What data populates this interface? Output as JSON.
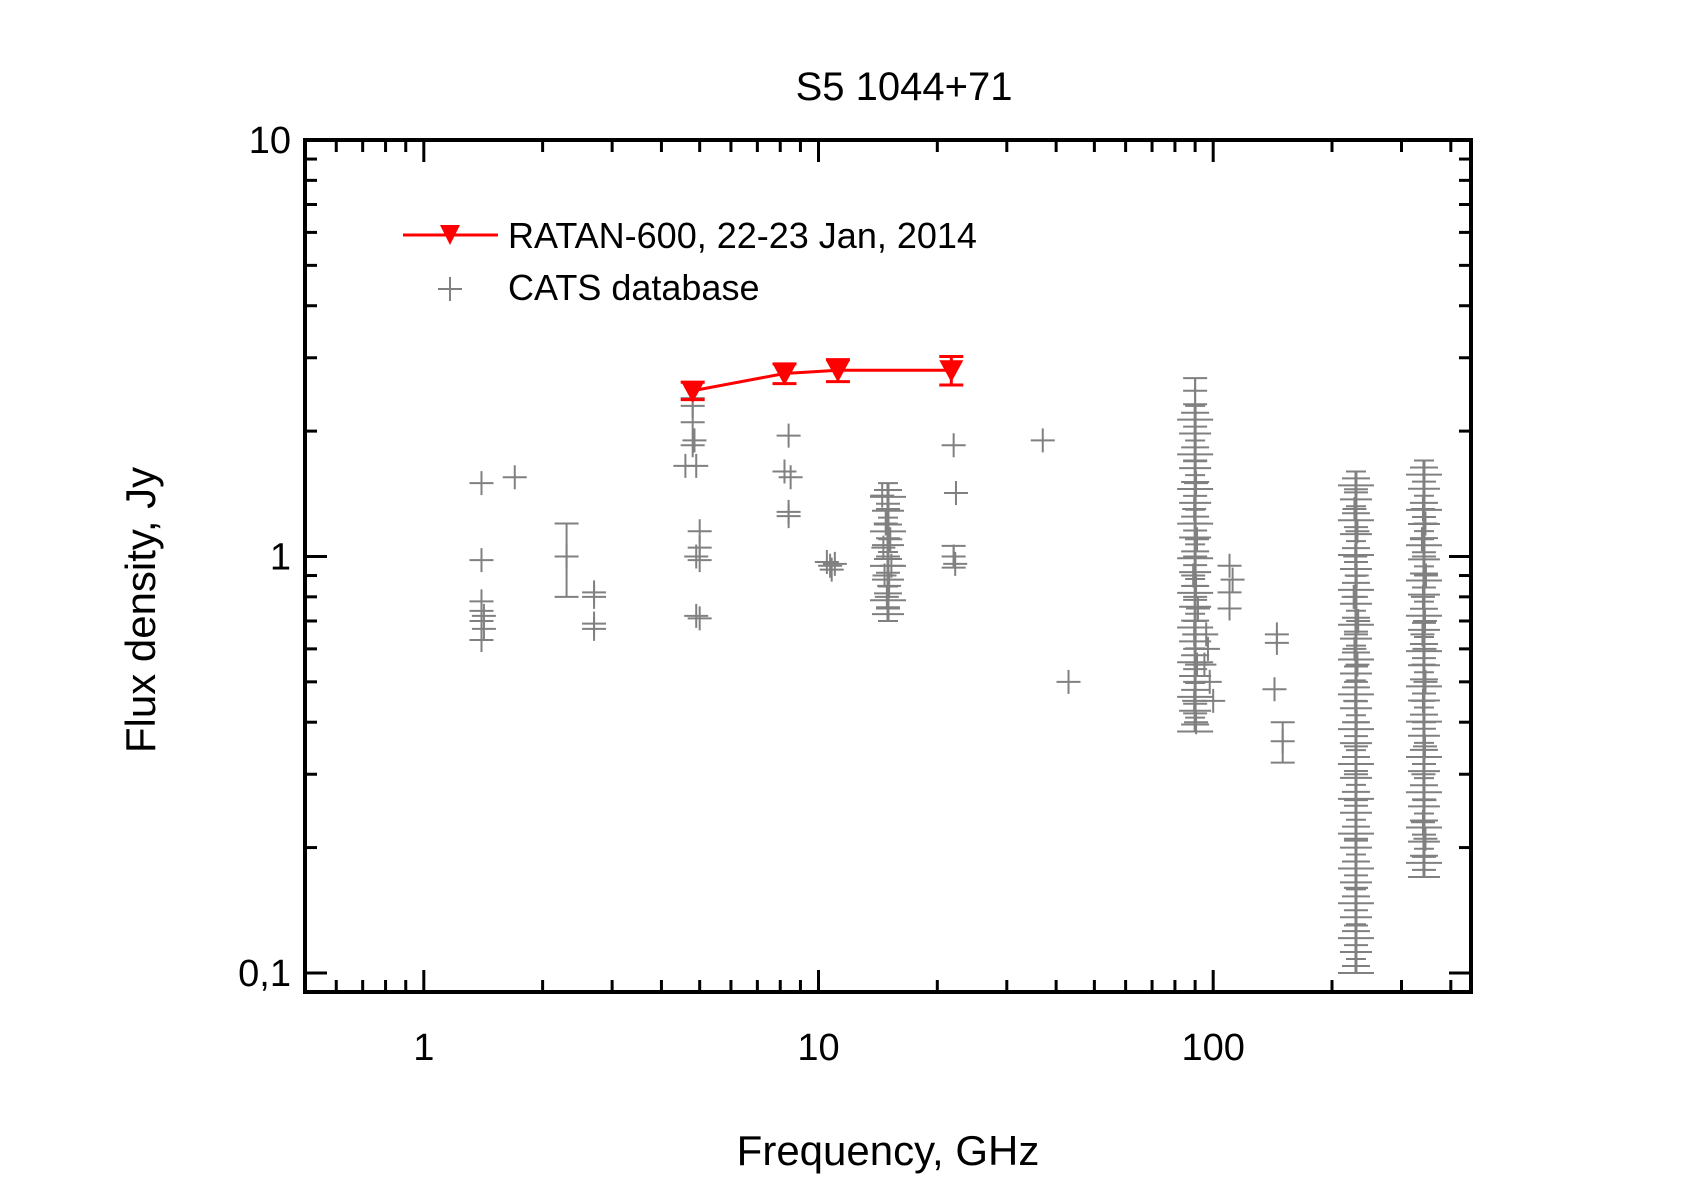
{
  "chart_data": {
    "type": "scatter",
    "title": "S5 1044+71",
    "xlabel": "Frequency, GHz",
    "ylabel": "Flux density, Jy",
    "x_scale": "log",
    "y_scale": "log",
    "xlim": [
      0.5,
      450
    ],
    "ylim": [
      0.09,
      10
    ],
    "x_tick_labels": [
      {
        "value": 1,
        "label": "1"
      },
      {
        "value": 10,
        "label": "10"
      },
      {
        "value": 100,
        "label": "100"
      }
    ],
    "y_tick_labels": [
      {
        "value": 0.1,
        "label": "0,1"
      },
      {
        "value": 1,
        "label": "1"
      },
      {
        "value": 10,
        "label": "10"
      }
    ],
    "grid": false,
    "legend_position": "top-left",
    "colors": {
      "ratan": "#ff0000",
      "cats": "#808080"
    },
    "series": [
      {
        "name": "RATAN-600, 22-23 Jan, 2014",
        "marker": "triangle-down",
        "line": true,
        "points": [
          {
            "x": 4.8,
            "y": 2.5,
            "err": 0.12
          },
          {
            "x": 8.2,
            "y": 2.75,
            "err": 0.15
          },
          {
            "x": 11.2,
            "y": 2.8,
            "err": 0.17
          },
          {
            "x": 21.7,
            "y": 2.8,
            "err": 0.22
          }
        ]
      },
      {
        "name": "CATS database",
        "marker": "plus",
        "line": false,
        "points": [
          {
            "x": 1.4,
            "y": 1.5
          },
          {
            "x": 1.4,
            "y": 0.98
          },
          {
            "x": 1.4,
            "y": 0.78
          },
          {
            "x": 1.4,
            "y": 0.74
          },
          {
            "x": 1.42,
            "y": 0.72
          },
          {
            "x": 1.4,
            "y": 0.7
          },
          {
            "x": 1.42,
            "y": 0.67
          },
          {
            "x": 1.4,
            "y": 0.63
          },
          {
            "x": 1.7,
            "y": 1.55
          },
          {
            "x": 2.3,
            "y": 1.0,
            "err": 0.2
          },
          {
            "x": 2.7,
            "y": 0.82
          },
          {
            "x": 2.7,
            "y": 0.8
          },
          {
            "x": 2.7,
            "y": 0.69
          },
          {
            "x": 2.7,
            "y": 0.67
          },
          {
            "x": 4.8,
            "y": 2.4
          },
          {
            "x": 4.8,
            "y": 2.3
          },
          {
            "x": 4.8,
            "y": 2.1
          },
          {
            "x": 4.85,
            "y": 1.9
          },
          {
            "x": 4.8,
            "y": 1.85
          },
          {
            "x": 4.6,
            "y": 1.65
          },
          {
            "x": 4.9,
            "y": 1.65
          },
          {
            "x": 5.0,
            "y": 1.15
          },
          {
            "x": 5.0,
            "y": 1.05
          },
          {
            "x": 4.9,
            "y": 1.0
          },
          {
            "x": 5.0,
            "y": 0.98
          },
          {
            "x": 4.9,
            "y": 0.72
          },
          {
            "x": 5.0,
            "y": 0.71
          },
          {
            "x": 8.4,
            "y": 1.95
          },
          {
            "x": 8.2,
            "y": 1.6
          },
          {
            "x": 8.5,
            "y": 1.55
          },
          {
            "x": 8.4,
            "y": 1.28
          },
          {
            "x": 8.4,
            "y": 1.25
          },
          {
            "x": 10.5,
            "y": 0.97
          },
          {
            "x": 10.7,
            "y": 0.95
          },
          {
            "x": 11.0,
            "y": 0.96
          },
          {
            "x": 10.8,
            "y": 0.93
          },
          {
            "x": 14.5,
            "y": 1.4
          },
          {
            "x": 15.0,
            "y": 1.3
          },
          {
            "x": 14.8,
            "y": 1.2
          },
          {
            "x": 15.2,
            "y": 1.1
          },
          {
            "x": 14.6,
            "y": 1.05
          },
          {
            "x": 15.0,
            "y": 1.0
          },
          {
            "x": 15.3,
            "y": 0.95
          },
          {
            "x": 14.7,
            "y": 0.9
          },
          {
            "x": 15.1,
            "y": 0.85
          },
          {
            "x": 14.9,
            "y": 0.8
          },
          {
            "x": 15.0,
            "y": 0.75
          },
          {
            "x": 22.0,
            "y": 1.85
          },
          {
            "x": 22.3,
            "y": 1.42
          },
          {
            "x": 22.0,
            "y": 1.0,
            "err": 0.06
          },
          {
            "x": 22.2,
            "y": 0.96
          },
          {
            "x": 37.0,
            "y": 1.9
          },
          {
            "x": 43.0,
            "y": 0.5
          },
          {
            "x": 90.0,
            "y": 2.5,
            "err": 0.18
          },
          {
            "x": 90.0,
            "y": 1.7
          },
          {
            "x": 90.5,
            "y": 1.5
          },
          {
            "x": 89.5,
            "y": 1.3
          },
          {
            "x": 90.0,
            "y": 1.2
          },
          {
            "x": 91.0,
            "y": 1.1
          },
          {
            "x": 90.0,
            "y": 1.0
          },
          {
            "x": 89.0,
            "y": 0.9
          },
          {
            "x": 90.5,
            "y": 0.85
          },
          {
            "x": 90.0,
            "y": 0.8
          },
          {
            "x": 91.5,
            "y": 0.75
          },
          {
            "x": 90.0,
            "y": 0.7
          },
          {
            "x": 89.5,
            "y": 0.65
          },
          {
            "x": 90.0,
            "y": 0.6
          },
          {
            "x": 91.0,
            "y": 0.55
          },
          {
            "x": 90.0,
            "y": 0.5
          },
          {
            "x": 89.5,
            "y": 0.45
          },
          {
            "x": 90.0,
            "y": 0.42
          },
          {
            "x": 90.5,
            "y": 0.4
          },
          {
            "x": 96.0,
            "y": 0.65
          },
          {
            "x": 97.0,
            "y": 0.6
          },
          {
            "x": 95.0,
            "y": 0.55
          },
          {
            "x": 98.0,
            "y": 0.5
          },
          {
            "x": 100.0,
            "y": 0.45
          },
          {
            "x": 110.0,
            "y": 0.95
          },
          {
            "x": 112.0,
            "y": 0.88
          },
          {
            "x": 110.0,
            "y": 0.82
          },
          {
            "x": 110.0,
            "y": 0.75
          },
          {
            "x": 145.0,
            "y": 0.65
          },
          {
            "x": 145.0,
            "y": 0.62
          },
          {
            "x": 143.0,
            "y": 0.48
          },
          {
            "x": 150.0,
            "y": 0.36,
            "err": 0.04
          },
          {
            "x": 230.0,
            "y": 1.45
          },
          {
            "x": 228.0,
            "y": 1.3
          },
          {
            "x": 232.0,
            "y": 1.15
          },
          {
            "x": 229.0,
            "y": 1.0
          },
          {
            "x": 231.0,
            "y": 0.9
          },
          {
            "x": 227.0,
            "y": 0.8
          },
          {
            "x": 233.0,
            "y": 0.7
          },
          {
            "x": 230.0,
            "y": 0.65
          },
          {
            "x": 228.0,
            "y": 0.6
          },
          {
            "x": 232.0,
            "y": 0.55
          },
          {
            "x": 230.0,
            "y": 0.5
          },
          {
            "x": 229.0,
            "y": 0.45
          },
          {
            "x": 231.0,
            "y": 0.4
          },
          {
            "x": 230.0,
            "y": 0.35
          },
          {
            "x": 230.0,
            "y": 0.3
          },
          {
            "x": 230.0,
            "y": 0.26
          },
          {
            "x": 230.0,
            "y": 0.21
          },
          {
            "x": 230.0,
            "y": 0.16
          },
          {
            "x": 230.0,
            "y": 0.13,
            "err": 0.03
          },
          {
            "x": 340.0,
            "y": 1.3
          },
          {
            "x": 345.0,
            "y": 1.2
          },
          {
            "x": 338.0,
            "y": 1.1
          },
          {
            "x": 342.0,
            "y": 1.0
          },
          {
            "x": 346.0,
            "y": 0.9
          },
          {
            "x": 340.0,
            "y": 0.8
          },
          {
            "x": 344.0,
            "y": 0.7
          },
          {
            "x": 339.0,
            "y": 0.65
          },
          {
            "x": 343.0,
            "y": 0.6
          },
          {
            "x": 341.0,
            "y": 0.55
          },
          {
            "x": 345.0,
            "y": 0.5
          },
          {
            "x": 340.0,
            "y": 0.45
          },
          {
            "x": 342.0,
            "y": 0.4
          },
          {
            "x": 344.0,
            "y": 0.35
          },
          {
            "x": 341.0,
            "y": 0.3
          },
          {
            "x": 343.0,
            "y": 0.26
          },
          {
            "x": 340.0,
            "y": 0.23
          },
          {
            "x": 345.0,
            "y": 0.21
          },
          {
            "x": 342.0,
            "y": 0.19
          }
        ]
      }
    ],
    "bands": [
      {
        "series": "CATS database",
        "x": 15.0,
        "y_low": 0.7,
        "y_high": 1.5
      },
      {
        "series": "CATS database",
        "x": 90.0,
        "y_low": 0.38,
        "y_high": 2.3
      },
      {
        "series": "CATS database",
        "x": 230.0,
        "y_low": 0.1,
        "y_high": 1.6
      },
      {
        "series": "CATS database",
        "x": 342.0,
        "y_low": 0.17,
        "y_high": 1.7
      }
    ]
  }
}
